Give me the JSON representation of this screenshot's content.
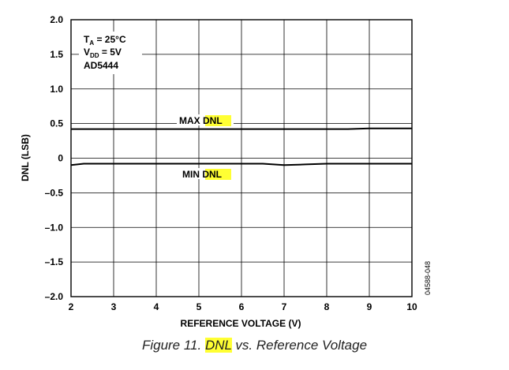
{
  "chart_data": {
    "type": "line",
    "title": "",
    "xlabel": "REFERENCE VOLTAGE (V)",
    "ylabel": "DNL (LSB)",
    "xlim": [
      2,
      10
    ],
    "ylim": [
      -2.0,
      2.0
    ],
    "x_ticks": [
      "2",
      "3",
      "4",
      "5",
      "6",
      "7",
      "8",
      "9",
      "10"
    ],
    "y_ticks": [
      "2.0",
      "1.5",
      "1.0",
      "0.5",
      "0",
      "–0.5",
      "–1.0",
      "–1.5",
      "–2.0"
    ],
    "grid": true,
    "series": [
      {
        "name": "MAX DNL",
        "x": [
          2,
          3,
          4,
          5,
          6,
          7,
          8,
          8.5,
          9,
          9.5,
          10
        ],
        "y": [
          0.42,
          0.42,
          0.42,
          0.42,
          0.42,
          0.42,
          0.42,
          0.42,
          0.43,
          0.43,
          0.43
        ]
      },
      {
        "name": "MIN DNL",
        "x": [
          2,
          2.3,
          3,
          4,
          5,
          6,
          6.5,
          7,
          7.5,
          8,
          9,
          10
        ],
        "y": [
          -0.1,
          -0.08,
          -0.08,
          -0.08,
          -0.08,
          -0.08,
          -0.08,
          -0.1,
          -0.09,
          -0.08,
          -0.08,
          -0.08
        ]
      }
    ],
    "annotations": {
      "conditions": [
        "T",
        "A",
        " = 25°C",
        "V",
        "DD",
        " = 5V",
        "AD5444"
      ],
      "max_prefix": "MAX ",
      "max_highlight": "DNL",
      "min_prefix": "MIN ",
      "min_highlight": "DNL",
      "figure_id": "04588-048"
    }
  },
  "caption": {
    "prefix": "Figure 11. ",
    "highlight": "DNL",
    "suffix": " vs. Reference Voltage"
  }
}
